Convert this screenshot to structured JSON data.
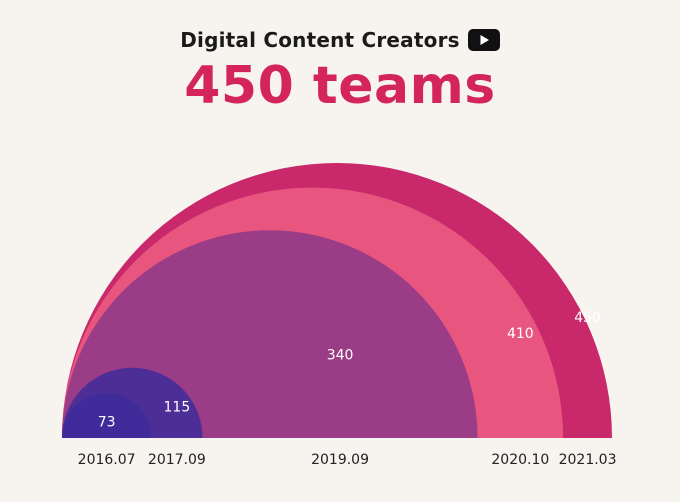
{
  "header": {
    "subtitle": "Digital Content Creators",
    "headline": "450 teams",
    "icon": "youtube-play-icon"
  },
  "chart_data": {
    "type": "area",
    "categories": [
      "2016.07",
      "2017.09",
      "2019.09",
      "2020.10",
      "2021.03"
    ],
    "values": [
      73,
      115,
      340,
      410,
      450
    ],
    "colors": [
      "#3f2b9a",
      "#4d2e96",
      "#9b3c87",
      "#e85680",
      "#c9286a"
    ],
    "title": "Digital Content Creators",
    "headline": "450 teams"
  }
}
